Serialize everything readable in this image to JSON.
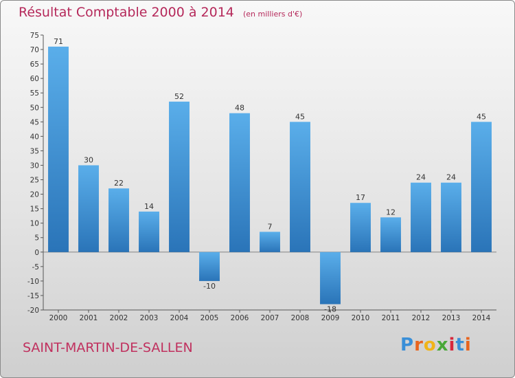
{
  "header": {
    "title": "Résultat Comptable 2000 à 2014",
    "subtitle": "(en milliers d'€)"
  },
  "footer": {
    "commune": "SAINT-MARTIN-DE-SALLEN",
    "logo": "Proxiti"
  },
  "colors": {
    "bar_top": "#5aaeea",
    "bar_bottom": "#2a74b8",
    "title": "#b5285a"
  },
  "chart_data": {
    "type": "bar",
    "categories": [
      "2000",
      "2001",
      "2002",
      "2003",
      "2004",
      "2005",
      "2006",
      "2007",
      "2008",
      "2009",
      "2010",
      "2011",
      "2012",
      "2013",
      "2014"
    ],
    "values": [
      71,
      30,
      22,
      14,
      52,
      -10,
      48,
      7,
      45,
      -18,
      17,
      12,
      24,
      24,
      45
    ],
    "title": "Résultat Comptable 2000 à 2014",
    "subtitle": "(en milliers d'€)",
    "xlabel": "",
    "ylabel": "",
    "ylim": [
      -20,
      75
    ],
    "yticks": [
      -20,
      -15,
      -10,
      -5,
      0,
      5,
      10,
      15,
      20,
      25,
      30,
      35,
      40,
      45,
      50,
      55,
      60,
      65,
      70,
      75
    ],
    "grid": false,
    "legend": "none"
  }
}
